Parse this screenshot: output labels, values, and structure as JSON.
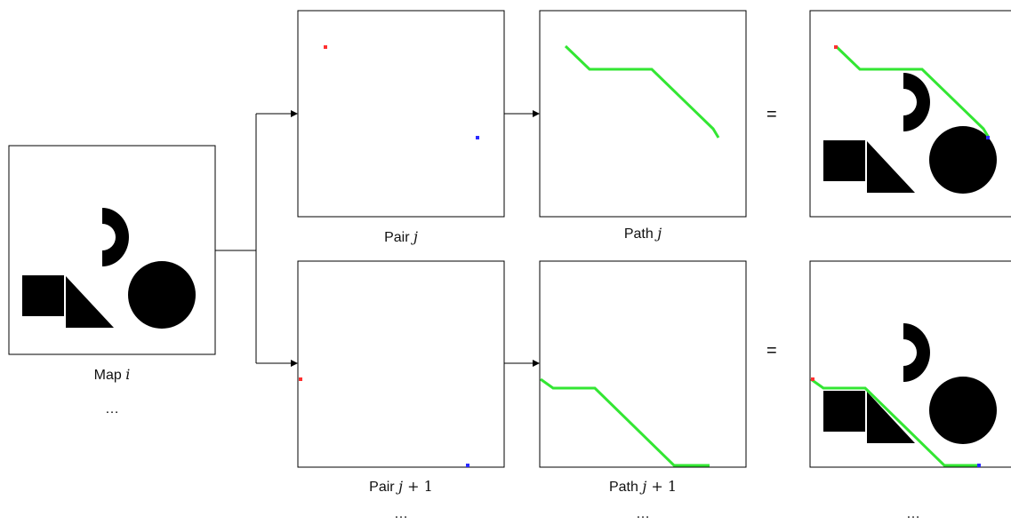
{
  "captions": {
    "map": {
      "prefix": "Map",
      "var": "i",
      "suffix": ""
    },
    "pair_top": {
      "prefix": "Pair",
      "var": "j",
      "suffix": ""
    },
    "path_top": {
      "prefix": "Path",
      "var": "j",
      "suffix": ""
    },
    "pair_bottom": {
      "prefix": "Pair",
      "var": "j",
      "suffix": " + 1"
    },
    "path_bottom": {
      "prefix": "Path",
      "var": "j",
      "suffix": " + 1"
    }
  },
  "ellipsis": "…",
  "equals": "=",
  "colors": {
    "start_point": "#ff3030",
    "goal_point": "#2a2aff",
    "path": "#33e633",
    "obstacle": "#000000",
    "frame": "#000000"
  }
}
